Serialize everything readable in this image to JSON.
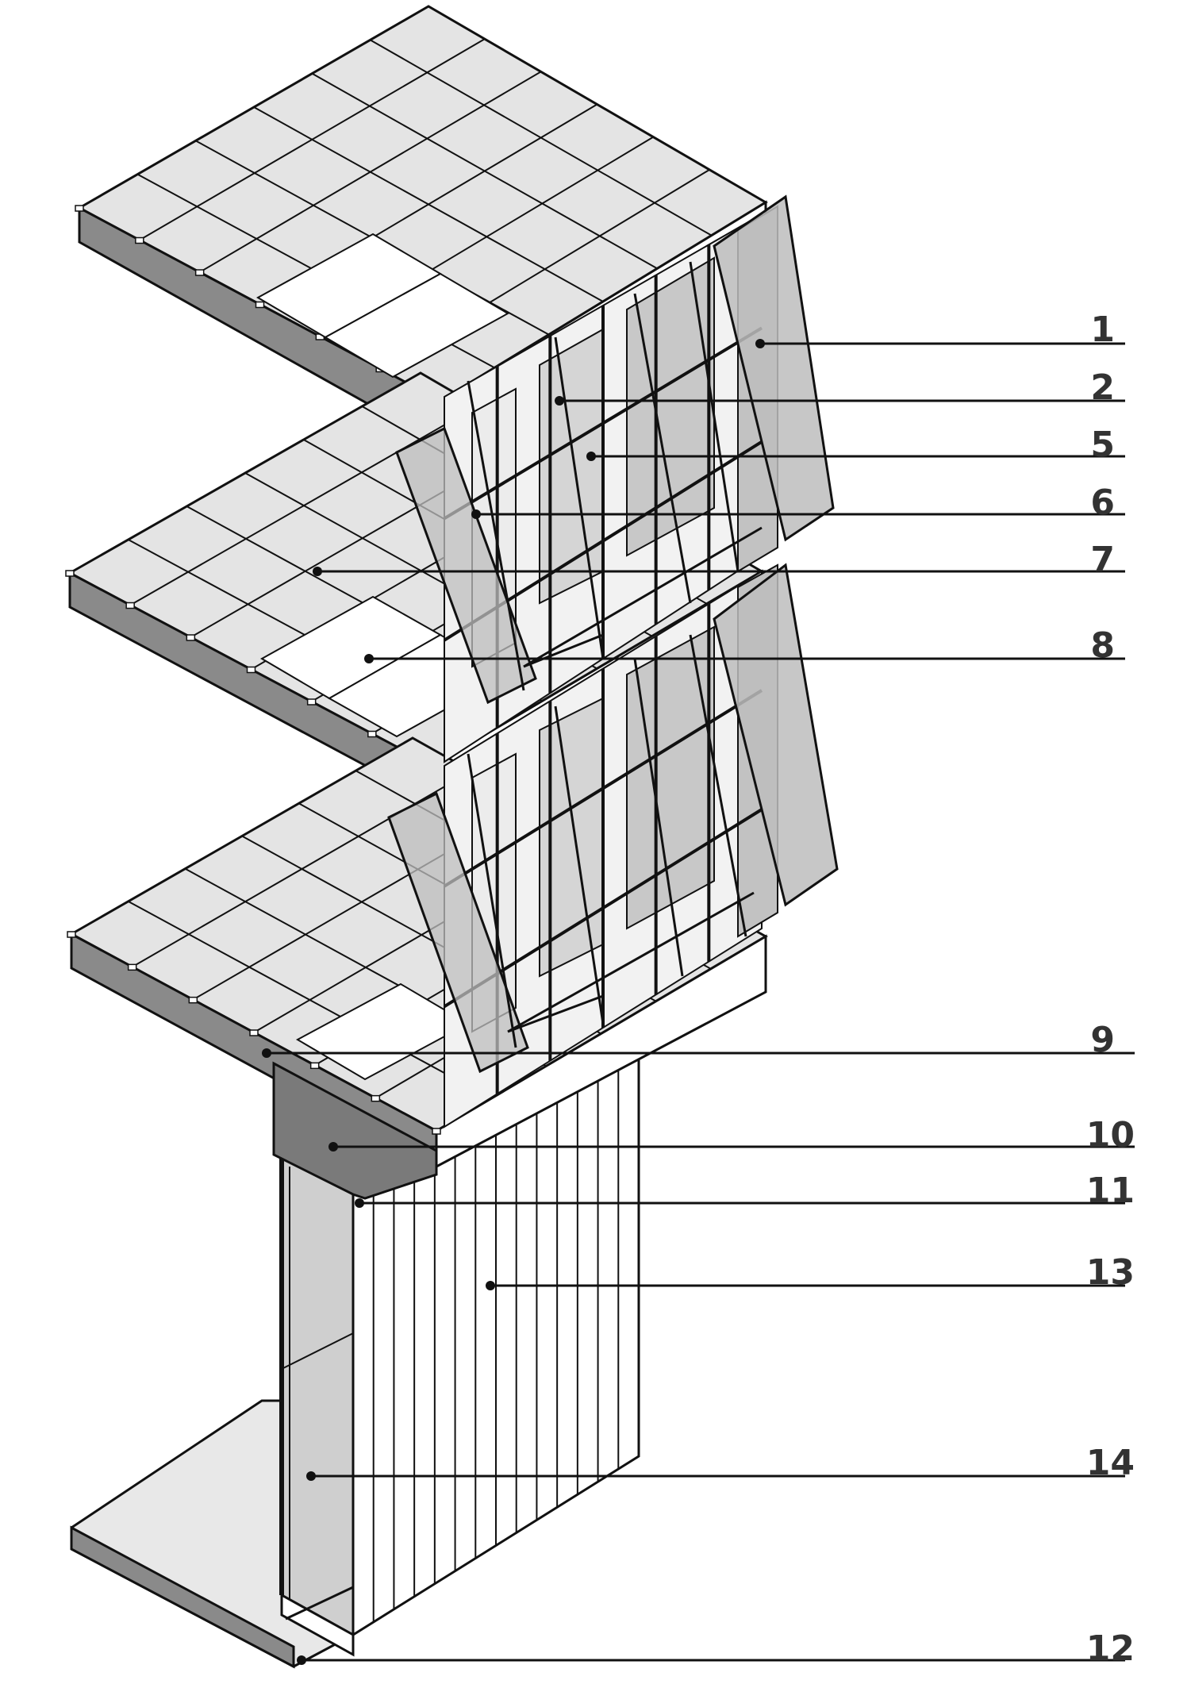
{
  "callouts": [
    {
      "id": "c1",
      "text": "1"
    },
    {
      "id": "c2",
      "text": "2"
    },
    {
      "id": "c5",
      "text": "5"
    },
    {
      "id": "c6",
      "text": "6"
    },
    {
      "id": "c7",
      "text": "7"
    },
    {
      "id": "c8",
      "text": "8"
    },
    {
      "id": "c9",
      "text": "9"
    },
    {
      "id": "c10",
      "text": "10"
    },
    {
      "id": "c11",
      "text": "11"
    },
    {
      "id": "c13",
      "text": "13"
    },
    {
      "id": "c14",
      "text": "14"
    },
    {
      "id": "c12",
      "text": "12"
    }
  ],
  "colors": {
    "ink": "#111111",
    "floor_tile": "#e4e4e4",
    "slab_edge": "#8a8a8a",
    "glass": "#bdbdbd",
    "glass_light": "#cfcfcf",
    "beam": "#6e6e6e",
    "panel": "#ffffff"
  }
}
